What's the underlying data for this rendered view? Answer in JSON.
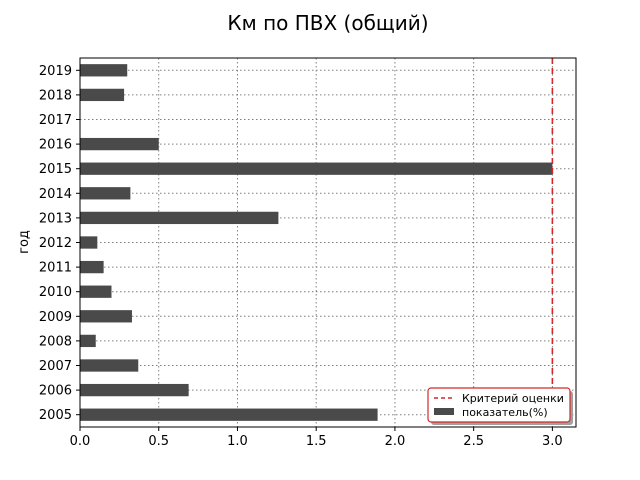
{
  "chart_data": {
    "type": "bar",
    "orientation": "horizontal",
    "title": "Км по ПВХ (общий)",
    "xlabel": "",
    "ylabel": "год",
    "xlim": [
      0,
      3.15
    ],
    "xticks": [
      0.0,
      0.5,
      1.0,
      1.5,
      2.0,
      2.5,
      3.0
    ],
    "xtick_labels": [
      "0.0",
      "0.5",
      "1.0",
      "1.5",
      "2.0",
      "2.5",
      "3.0"
    ],
    "categories": [
      "2005",
      "2006",
      "2007",
      "2008",
      "2009",
      "2010",
      "2011",
      "2012",
      "2013",
      "2014",
      "2015",
      "2016",
      "2017",
      "2018",
      "2019"
    ],
    "series": [
      {
        "name": "показатель(%)",
        "color": "#4a4a4a",
        "values": [
          1.89,
          0.69,
          0.37,
          0.1,
          0.33,
          0.2,
          0.15,
          0.11,
          1.26,
          0.32,
          3.0,
          0.5,
          0.0,
          0.28,
          0.3
        ]
      }
    ],
    "reference_line": {
      "name": "Критерий оценки",
      "value": 3.0,
      "color": "#d62728",
      "style": "dashed"
    },
    "grid": true,
    "legend_position": "lower-right"
  }
}
